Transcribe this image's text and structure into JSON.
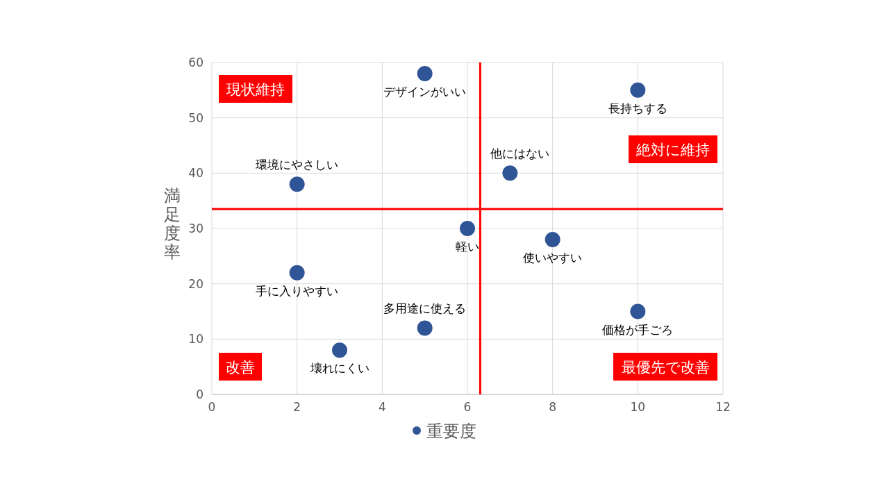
{
  "chart_data": {
    "type": "scatter",
    "ylabel": "満足度率",
    "x": [
      5,
      10,
      7,
      2,
      6,
      8,
      2,
      5,
      10,
      3
    ],
    "series": [
      {
        "name": "重要度",
        "color": "#2f5597",
        "values": [
          58,
          55,
          40,
          38,
          30,
          28,
          22,
          12,
          15,
          8
        ]
      }
    ],
    "xlim": [
      0,
      12
    ],
    "xticks": [
      0,
      2,
      4,
      6,
      8,
      10,
      12
    ],
    "ylim": [
      0,
      60
    ],
    "yticks": [
      0,
      10,
      20,
      30,
      40,
      50,
      60
    ],
    "grid": true,
    "legend": "bottom",
    "marker": "circle",
    "ref_lines": [
      {
        "axis": "x",
        "value": 6.3,
        "color": "#ff0000"
      },
      {
        "axis": "y",
        "value": 33.5,
        "color": "#ff0000"
      }
    ],
    "annotations": [
      "現状維持",
      "絶対に維持",
      "改善",
      "最優先で改善",
      {
        "text": "デザインがいい",
        "x": 5,
        "y": 58
      },
      {
        "text": "長持ちする",
        "x": 10,
        "y": 55
      },
      {
        "text": "他にはない",
        "x": 7,
        "y": 40
      },
      {
        "text": "環境にやさしい",
        "x": 2,
        "y": 38
      },
      {
        "text": "軽い",
        "x": 6,
        "y": 30
      },
      {
        "text": "使いやすい",
        "x": 8,
        "y": 28
      },
      {
        "text": "手に入りやすい",
        "x": 2,
        "y": 22
      },
      {
        "text": "多用途に使える",
        "x": 5,
        "y": 12
      },
      {
        "text": "価格が手ごろ",
        "x": 10,
        "y": 15
      },
      {
        "text": "壊れにくい",
        "x": 3,
        "y": 8
      }
    ]
  }
}
